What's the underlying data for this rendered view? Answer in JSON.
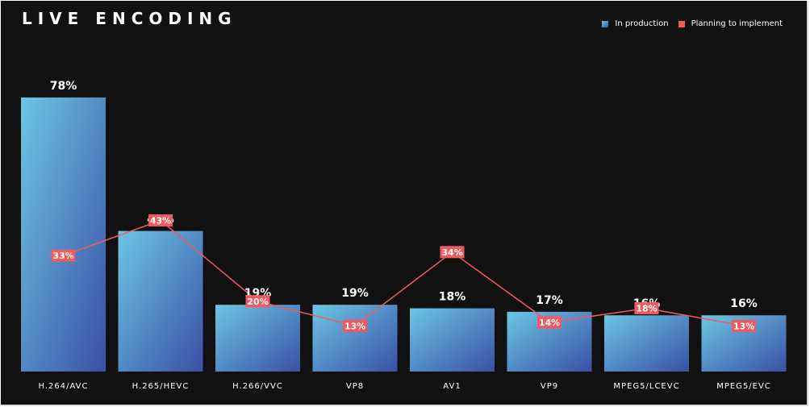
{
  "header": {
    "title": "LIVE ENCODING"
  },
  "legend": {
    "production_label": "In production",
    "planning_label": "Planning to implement"
  },
  "colors": {
    "background": "#121112",
    "bar_top": "#6cc6e3",
    "bar_bottom": "#3a4fa6",
    "line": "#f05a5e"
  },
  "chart_data": {
    "type": "bar",
    "title": "LIVE ENCODING",
    "categories": [
      "H.264/AVC",
      "H.265/HEVC",
      "H.266/VVC",
      "VP8",
      "AV1",
      "VP9",
      "MPEG5/LCEVC",
      "MPEG5/EVC"
    ],
    "series": [
      {
        "name": "In production",
        "type": "bar",
        "values": [
          78,
          40,
          19,
          19,
          18,
          17,
          16,
          16
        ],
        "labels": [
          "78%",
          "40%",
          "19%",
          "19%",
          "18%",
          "17%",
          "16%",
          "16%"
        ]
      },
      {
        "name": "Planning to implement",
        "type": "line",
        "values": [
          33,
          43,
          20,
          13,
          34,
          14,
          18,
          13
        ],
        "labels": [
          "33%",
          "43%",
          "20%",
          "13%",
          "34%",
          "14%",
          "18%",
          "13%"
        ]
      }
    ],
    "ylim": [
      0,
      80
    ],
    "grid": false,
    "legend_position": "top-right"
  }
}
